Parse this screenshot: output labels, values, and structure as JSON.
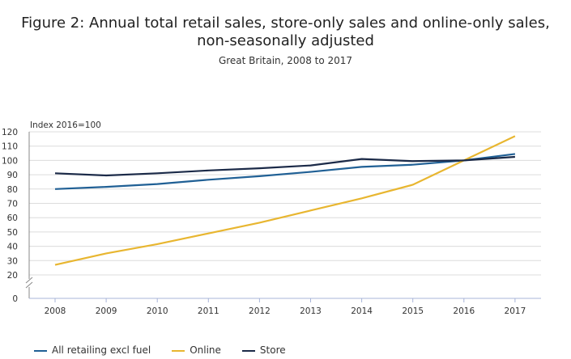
{
  "title_line1": "Figure 2: Annual total retail sales, store-only sales and online-only sales,",
  "title_line2": "non-seasonally adjusted",
  "subtitle": "Great Britain, 2008 to 2017",
  "chart_data": {
    "type": "line",
    "ylabel": "Index 2016=100",
    "x": [
      "2008",
      "2009",
      "2010",
      "2011",
      "2012",
      "2013",
      "2014",
      "2015",
      "2016",
      "2017"
    ],
    "yticks": [
      0,
      20,
      30,
      40,
      50,
      60,
      70,
      80,
      90,
      100,
      110,
      120
    ],
    "ylim": [
      0,
      120
    ],
    "axis_break": true,
    "grid": true,
    "legend_position": "bottom",
    "series": [
      {
        "name": "All retailing excl fuel",
        "color": "#206095",
        "values": [
          80,
          81.5,
          83.5,
          86.5,
          89,
          92,
          95.5,
          97,
          100,
          104.5
        ]
      },
      {
        "name": "Online",
        "color": "#e8b630",
        "values": [
          27,
          35,
          41.5,
          49,
          56.5,
          65,
          73.5,
          83,
          100,
          117
        ]
      },
      {
        "name": "Store",
        "color": "#1b2a48",
        "values": [
          91,
          89.5,
          91,
          93,
          94.5,
          96.5,
          101,
          99.5,
          100,
          102.5
        ]
      }
    ]
  }
}
